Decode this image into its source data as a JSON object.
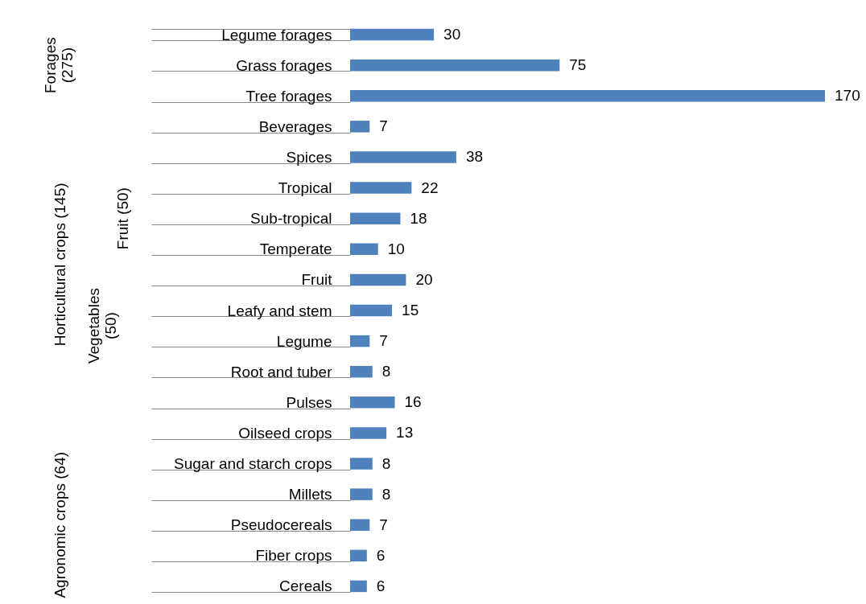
{
  "chart_data": {
    "type": "bar",
    "orientation": "horizontal",
    "data_labels": true,
    "color": "#4f81bd",
    "categories": [
      "Legume forages",
      "Grass forages",
      "Tree forages",
      "Beverages",
      "Spices",
      "Tropical",
      "Sub-tropical",
      "Temperate",
      "Fruit",
      "Leafy and stem",
      "Legume",
      "Root and tuber",
      "Pulses",
      "Oilseed crops",
      "Sugar and starch crops",
      "Millets",
      "Pseudocereals",
      "Fiber crops",
      "Cereals"
    ],
    "values": [
      30,
      75,
      170,
      7,
      38,
      22,
      18,
      10,
      20,
      15,
      7,
      8,
      16,
      13,
      8,
      8,
      7,
      6,
      6
    ],
    "xlim": [
      0,
      170
    ],
    "tick_labels": "y",
    "annotations": [
      "Forages (275)",
      "Horticultural crops (145)",
      "Fruit (50)",
      "Vegetables (50)",
      "Agronomic crops (64)"
    ]
  }
}
